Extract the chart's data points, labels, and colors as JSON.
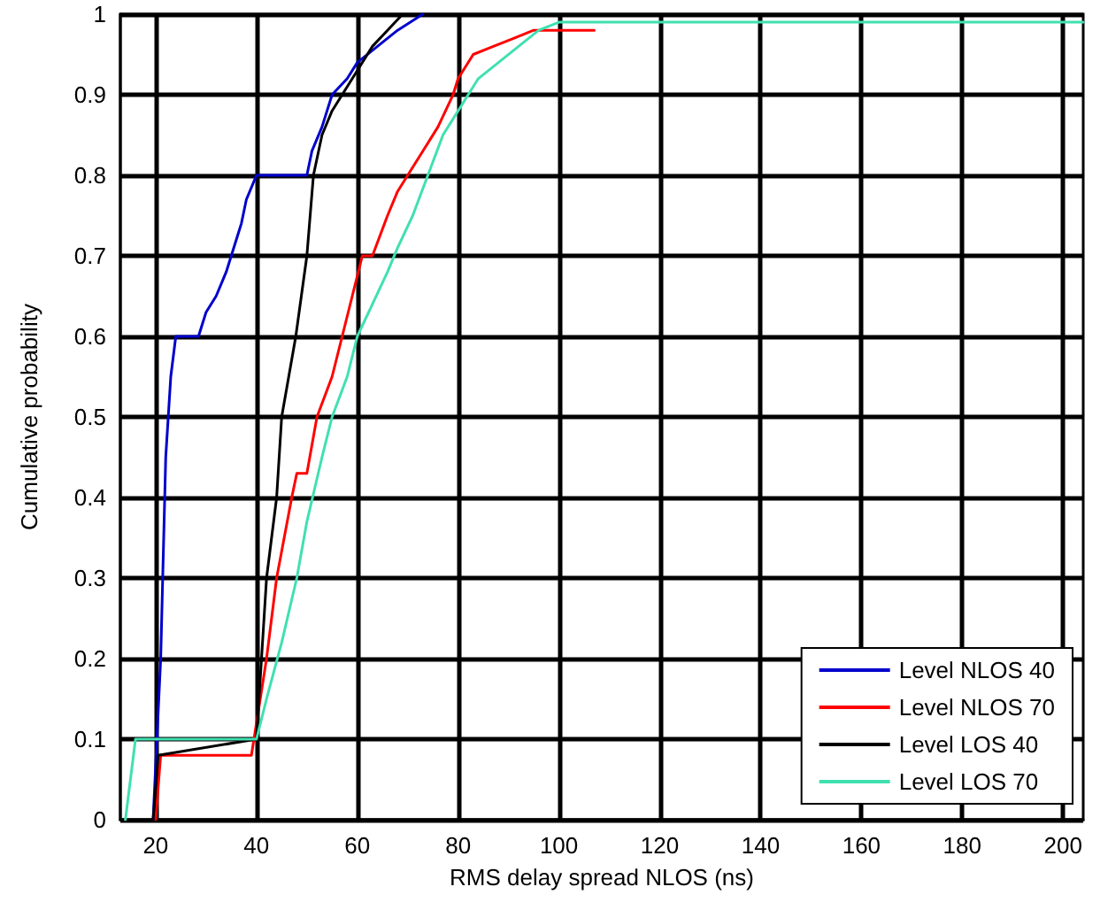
{
  "chart_data": {
    "type": "line",
    "xlabel": "RMS delay spread NLOS (ns)",
    "ylabel": "Cumulative probability",
    "xlim": [
      13,
      204
    ],
    "xticks": [
      20,
      40,
      60,
      80,
      100,
      120,
      140,
      160,
      180,
      200
    ],
    "ylim": [
      0,
      1
    ],
    "yticks": [
      0,
      0.1,
      0.2,
      0.3,
      0.4,
      0.5,
      0.6,
      0.7,
      0.8,
      0.9,
      1
    ],
    "grid": true,
    "legend": "bottom right",
    "marker": "none",
    "line_style": "solid",
    "series": [
      {
        "name": "Level NLOS 40",
        "color": "#0000cc",
        "x": [
          19.5,
          21,
          22,
          23,
          24,
          28.5,
          30,
          32,
          34,
          35,
          37,
          38,
          40,
          50,
          51,
          53,
          55,
          58,
          60,
          64,
          68,
          73
        ],
        "values": [
          0,
          0.2,
          0.45,
          0.55,
          0.6,
          0.6,
          0.63,
          0.65,
          0.68,
          0.7,
          0.74,
          0.77,
          0.8,
          0.8,
          0.83,
          0.86,
          0.9,
          0.92,
          0.94,
          0.96,
          0.98,
          1
        ]
      },
      {
        "name": "Level NLOS 70",
        "color": "#ff0000",
        "x": [
          20,
          21,
          39,
          40,
          42,
          44,
          47,
          48,
          50,
          52,
          55,
          57,
          59,
          61,
          63,
          66,
          68,
          70,
          73,
          76,
          79,
          80,
          83,
          87,
          91,
          95,
          107
        ],
        "values": [
          0,
          0.08,
          0.08,
          0.12,
          0.2,
          0.3,
          0.4,
          0.43,
          0.43,
          0.5,
          0.55,
          0.6,
          0.65,
          0.7,
          0.7,
          0.75,
          0.78,
          0.8,
          0.83,
          0.86,
          0.9,
          0.92,
          0.95,
          0.96,
          0.97,
          0.98,
          0.98
        ]
      },
      {
        "name": "Level LOS 40",
        "color": "#000000",
        "x": [
          19.5,
          20.5,
          40,
          41,
          42,
          44,
          45,
          47.8,
          50,
          51.3,
          53,
          55,
          57,
          60,
          63,
          66,
          69
        ],
        "values": [
          0,
          0.08,
          0.1,
          0.2,
          0.3,
          0.4,
          0.5,
          0.6,
          0.7,
          0.8,
          0.85,
          0.88,
          0.9,
          0.93,
          0.96,
          0.98,
          1
        ]
      },
      {
        "name": "Level LOS 70",
        "color": "#40e0b0",
        "x": [
          14,
          16,
          40,
          42,
          45,
          48,
          50,
          53,
          55,
          58,
          60,
          63,
          66,
          68,
          71,
          74,
          77,
          80,
          84,
          88,
          92,
          96,
          100,
          204
        ],
        "values": [
          0,
          0.1,
          0.1,
          0.15,
          0.22,
          0.3,
          0.37,
          0.45,
          0.5,
          0.55,
          0.6,
          0.64,
          0.68,
          0.71,
          0.75,
          0.8,
          0.85,
          0.88,
          0.92,
          0.94,
          0.96,
          0.98,
          0.99,
          0.99
        ]
      }
    ]
  }
}
